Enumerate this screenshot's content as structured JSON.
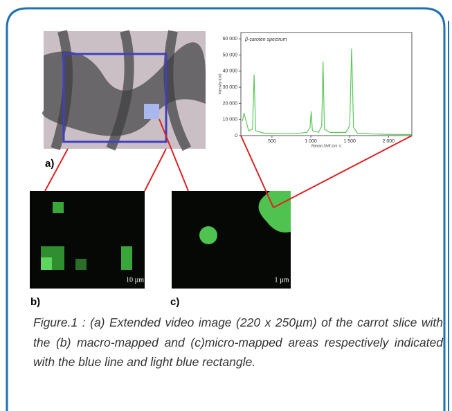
{
  "chart_data": {
    "type": "line",
    "title": "β-caroten spectrum",
    "x_label": "Raman Shift (cm⁻¹)",
    "y_label": "Intensity (cnt)",
    "x": [
      120,
      140,
      200,
      250,
      270,
      290,
      400,
      600,
      800,
      950,
      990,
      1005,
      1020,
      1100,
      1140,
      1157,
      1175,
      1250,
      1450,
      1500,
      1525,
      1550,
      1600,
      1800,
      2000,
      2200,
      2300
    ],
    "series": [
      {
        "name": "β-caroten",
        "color": "#5cc85c",
        "values": [
          9000,
          14000,
          3000,
          4000,
          38000,
          3000,
          1500,
          1200,
          1200,
          2000,
          5000,
          15000,
          3000,
          2000,
          6000,
          46000,
          4000,
          2000,
          2000,
          6000,
          54000,
          5000,
          1500,
          1000,
          800,
          700,
          700
        ]
      }
    ],
    "xlim": [
      100,
      2300
    ],
    "ylim": [
      0,
      64000
    ],
    "xticks": [
      500,
      {
        "value": 1000,
        "label": "1 000"
      },
      {
        "value": 1500,
        "label": "1 500"
      },
      {
        "value": 2000,
        "label": "2 000"
      }
    ],
    "yticks": [
      0,
      {
        "value": 10000,
        "label": "10 000"
      },
      {
        "value": 20000,
        "label": "20 000"
      },
      {
        "value": 30000,
        "label": "30 000"
      },
      {
        "value": 40000,
        "label": "40 000"
      },
      {
        "value": 50000,
        "label": "50 000"
      },
      {
        "value": 60000,
        "label": "60 000"
      }
    ]
  },
  "panels": {
    "a": "a)",
    "b": "b)",
    "c": "c)",
    "scale_b": "10 µm",
    "scale_c": "1 µm"
  },
  "caption": "Figure.1 : (a) Extended video image (220 x 250µm) of the carrot slice with the (b) macro-mapped and (c)micro-mapped areas respectively indicated with the blue line and light blue rectangle."
}
